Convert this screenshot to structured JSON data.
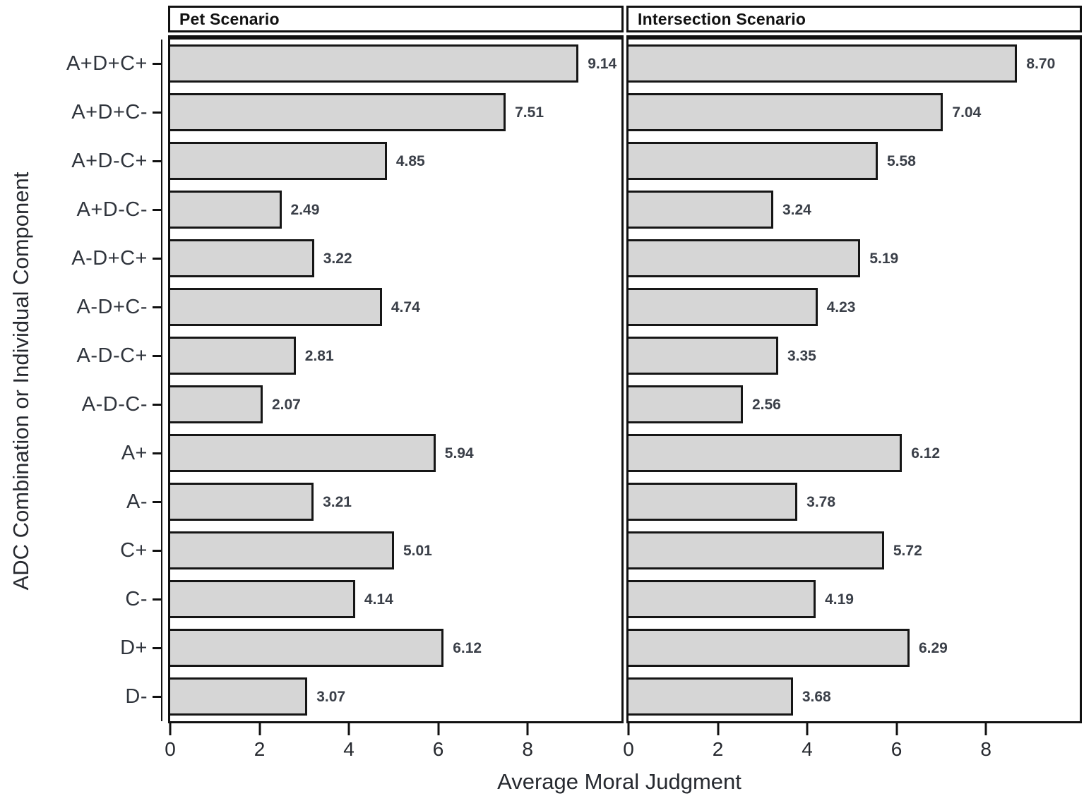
{
  "chart_data": {
    "type": "bar",
    "orientation": "horizontal",
    "title": "",
    "xlabel": "Average Moral Judgment",
    "ylabel": "ADC Combination or Individual Component",
    "categories": [
      "A+D+C+",
      "A+D+C-",
      "A+D-C+",
      "A+D-C-",
      "A-D+C+",
      "A-D+C-",
      "A-D-C+",
      "A-D-C-",
      "A+",
      "A-",
      "C+",
      "C-",
      "D+",
      "D-"
    ],
    "series": [
      {
        "name": "Pet Scenario",
        "values": [
          9.14,
          7.51,
          4.85,
          2.49,
          3.22,
          4.74,
          2.81,
          2.07,
          5.94,
          3.21,
          5.01,
          4.14,
          6.12,
          3.07
        ],
        "labels": [
          "9.14",
          "7.51",
          "4.85",
          "2.49",
          "3.22",
          "4.74",
          "2.81",
          "2.07",
          "5.94",
          "3.21",
          "5.01",
          "4.14",
          "6.12",
          "3.07"
        ]
      },
      {
        "name": "Intersection Scenario",
        "values": [
          8.7,
          7.04,
          5.58,
          3.24,
          5.19,
          4.23,
          3.35,
          2.56,
          6.12,
          3.78,
          5.72,
          4.19,
          6.29,
          3.68
        ],
        "labels": [
          "8.70",
          "7.04",
          "5.58",
          "3.24",
          "5.19",
          "4.23",
          "3.35",
          "2.56",
          "6.12",
          "3.78",
          "5.72",
          "4.19",
          "6.29",
          "3.68"
        ]
      }
    ],
    "xticks": [
      0,
      2,
      4,
      6,
      8
    ],
    "xlim": [
      0,
      10.1
    ],
    "grid": false,
    "legend_position": "none",
    "bar_fill": "#d6d6d6",
    "bar_border": "#161616",
    "value_label_color": "#3a3f48",
    "panel_border_color": "#111111",
    "background": "#ffffff"
  }
}
